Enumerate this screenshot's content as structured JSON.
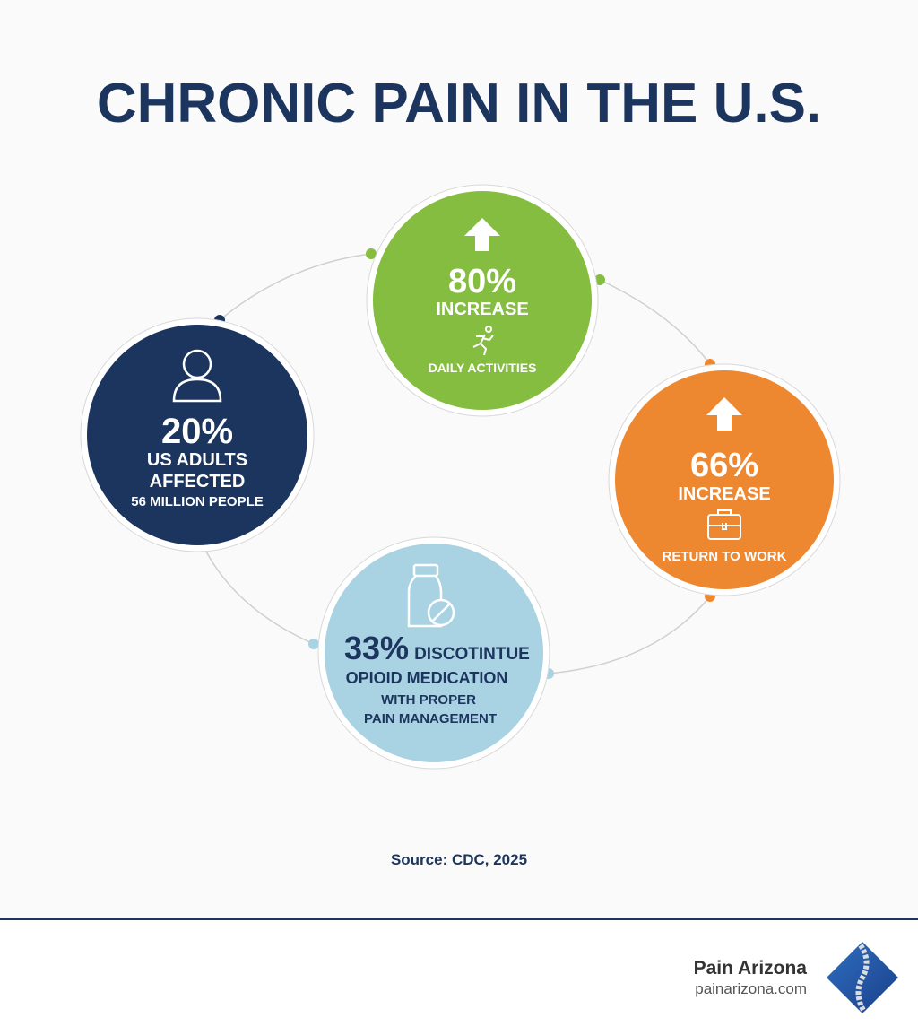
{
  "header": {
    "title": "CHRONIC PAIN IN THE U.S."
  },
  "nodes": [
    {
      "stat": "20%",
      "lines": [
        "US ADULTS",
        "AFFECTED",
        "56 MILLION PEOPLE"
      ]
    },
    {
      "stat": "80%",
      "lines": [
        "INCREASE",
        "DAILY ACTIVITIES"
      ]
    },
    {
      "stat": "66%",
      "lines": [
        "INCREASE",
        "RETURN TO WORK"
      ]
    },
    {
      "stat": "33%",
      "lines": [
        "DISCOTINTUE",
        "OPIOID MEDICATION",
        "WITH PROPER",
        "PAIN MANAGEMENT"
      ]
    }
  ],
  "source": "Source: CDC, 2025",
  "footer": {
    "brand": "Pain Arizona",
    "url": "painarizona.com"
  }
}
